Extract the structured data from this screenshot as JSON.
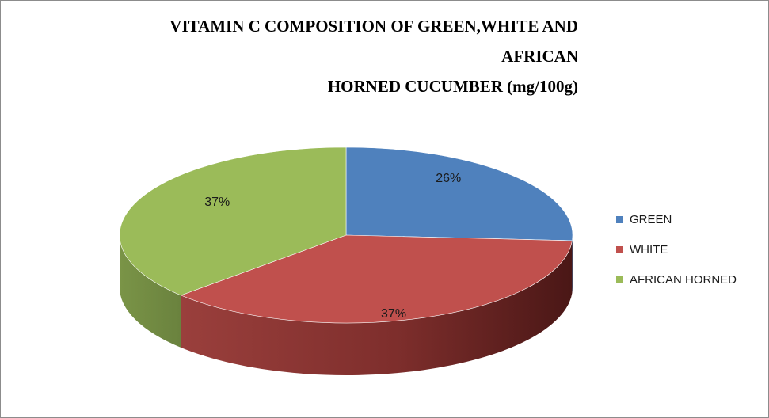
{
  "title_line1": "VITAMIN C COMPOSITION OF GREEN,WHITE AND AFRICAN",
  "title_line2": "HORNED CUCUMBER (mg/100g)",
  "chart_data": {
    "type": "pie",
    "title": "VITAMIN C COMPOSITION OF GREEN,WHITE AND AFRICAN HORNED CUCUMBER (mg/100g)",
    "legend_position": "right",
    "three_d": true,
    "slices": [
      {
        "label": "GREEN",
        "value": 26,
        "display": "26%",
        "color": "#4f81bd"
      },
      {
        "label": "WHITE",
        "value": 37,
        "display": "37%",
        "color": "#c0504d"
      },
      {
        "label": "AFRICAN HORNED",
        "value": 37,
        "display": "37%",
        "color": "#9bbb59"
      }
    ]
  }
}
